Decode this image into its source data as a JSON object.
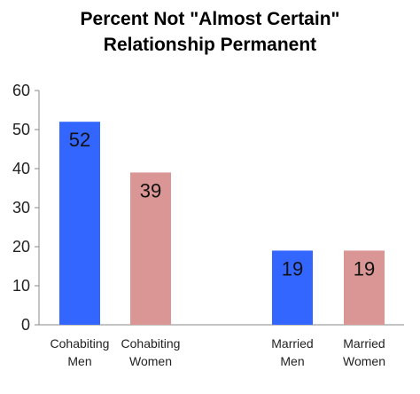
{
  "chart_data": {
    "type": "bar",
    "title": [
      "Percent Not \"Almost Certain\"",
      "Relationship Permanent"
    ],
    "xlabel": "",
    "ylabel": "",
    "ylim": [
      0,
      60
    ],
    "yticks": [
      0,
      10,
      20,
      30,
      40,
      50,
      60
    ],
    "categories": [
      [
        "Cohabiting",
        "Men"
      ],
      [
        "Cohabiting",
        "Women"
      ],
      [
        "Married",
        "Men"
      ],
      [
        "Married",
        "Women"
      ]
    ],
    "values": [
      52,
      39,
      19,
      19
    ],
    "data_labels": [
      "52",
      "39",
      "19",
      "19"
    ],
    "bar_colors": [
      "#3366ff",
      "#d99694",
      "#3366ff",
      "#d99694"
    ],
    "grid": false,
    "legend": "none"
  },
  "colors": {
    "axis": "#888888",
    "men": "#3366ff",
    "women": "#d99694"
  }
}
